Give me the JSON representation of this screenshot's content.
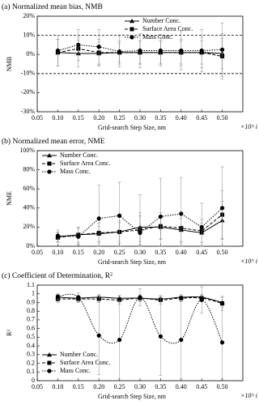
{
  "chart_data": [
    {
      "type": "line",
      "title": "(a) Normalized mean bias, NMB",
      "y_label": "NMB",
      "x_label": "Grid-search Step Size, nm",
      "x_note": "×10^ i",
      "x": [
        0.1,
        0.15,
        0.2,
        0.25,
        0.3,
        0.35,
        0.4,
        0.45,
        0.5
      ],
      "xlim": [
        0.05,
        0.55
      ],
      "xticks": [
        0.05,
        {
          "value": 0.1,
          "label": "0.10"
        },
        0.15,
        {
          "value": 0.2,
          "label": "0.20"
        },
        0.25,
        {
          "value": 0.3,
          "label": "0.30"
        },
        0.35,
        {
          "value": 0.4,
          "label": "0.40"
        },
        0.45,
        {
          "value": 0.5,
          "label": "0.50"
        }
      ],
      "ylim": [
        -30,
        20
      ],
      "yticks": [
        {
          "value": -30,
          "label": "-30%"
        },
        {
          "value": -20,
          "label": "-20%"
        },
        {
          "value": -10,
          "label": "-10%"
        },
        {
          "value": 0,
          "label": "0%"
        },
        {
          "value": 10,
          "label": "10%"
        },
        {
          "value": 20,
          "label": "20%"
        }
      ],
      "reference_lines": [
        10,
        -10
      ],
      "legend": "top-right",
      "series": [
        {
          "name": "Number Conc.",
          "color": "#000000",
          "marker": "triangle",
          "line_style": "solid",
          "values": [
            1,
            0.5,
            0.5,
            1,
            1,
            1,
            1,
            1,
            0.5
          ],
          "errors": [
            7,
            7,
            6,
            6,
            6,
            6,
            6,
            6,
            8
          ]
        },
        {
          "name": "Surface Area Conc.",
          "color": "#000000",
          "marker": "square",
          "line_style": "dashed",
          "values": [
            1,
            3,
            1,
            1,
            1,
            1,
            1,
            1,
            -1
          ],
          "errors": [
            7,
            6,
            7,
            5,
            6,
            6,
            7,
            8,
            12
          ]
        },
        {
          "name": "Mass Conc.",
          "color": "#000000",
          "marker": "circle",
          "line_style": "dotted",
          "values": [
            2,
            5,
            4,
            1.5,
            2,
            2,
            2,
            2,
            2.5
          ],
          "errors": [
            8,
            8,
            9,
            8,
            9,
            8,
            10,
            11,
            14
          ]
        }
      ]
    },
    {
      "type": "line",
      "title": "(b) Normalized mean error, NME",
      "y_label": "NME",
      "x_label": "Grid-search Step Size, nm",
      "x_note": "×10^ i",
      "x": [
        0.1,
        0.15,
        0.2,
        0.25,
        0.3,
        0.35,
        0.4,
        0.45,
        0.5
      ],
      "xlim": [
        0.05,
        0.55
      ],
      "xticks": [
        0.05,
        {
          "value": 0.1,
          "label": "0.10"
        },
        0.15,
        {
          "value": 0.2,
          "label": "0.20"
        },
        0.25,
        {
          "value": 0.3,
          "label": "0.30"
        },
        0.35,
        {
          "value": 0.4,
          "label": "0.40"
        },
        0.45,
        {
          "value": 0.5,
          "label": "0.50"
        }
      ],
      "ylim": [
        0,
        100
      ],
      "yticks": [
        {
          "value": 0,
          "label": "0%"
        },
        {
          "value": 20,
          "label": "20%"
        },
        {
          "value": 40,
          "label": "40%"
        },
        {
          "value": 60,
          "label": "60%"
        },
        {
          "value": 80,
          "label": "80%"
        },
        {
          "value": 100,
          "label": "100%"
        }
      ],
      "legend": "top-left",
      "series": [
        {
          "name": "Number Conc.",
          "color": "#000000",
          "marker": "triangle",
          "line_style": "solid",
          "values": [
            10,
            12,
            13,
            15,
            20,
            20,
            17,
            14,
            27
          ],
          "errors": [
            5,
            8,
            8,
            10,
            15,
            12,
            12,
            10,
            20
          ]
        },
        {
          "name": "Surface Area Conc.",
          "color": "#000000",
          "marker": "square",
          "line_style": "dashed",
          "values": [
            9,
            12,
            14,
            15,
            17,
            21,
            19,
            16,
            33
          ],
          "errors": [
            5,
            8,
            10,
            12,
            15,
            14,
            15,
            12,
            25
          ]
        },
        {
          "name": "Mass Conc.",
          "color": "#000000",
          "marker": "circle",
          "line_style": "dotted",
          "values": [
            11,
            10,
            29,
            32,
            14,
            31,
            34,
            20,
            40
          ],
          "errors": [
            6,
            8,
            35,
            35,
            40,
            40,
            38,
            25,
            43
          ]
        }
      ]
    },
    {
      "type": "line",
      "title": "(c) Coefficient of Determination, R²",
      "y_label": "R²",
      "x_label": "Grid-search Step Size, nm",
      "x_note": "×10^ i",
      "x": [
        0.1,
        0.15,
        0.2,
        0.25,
        0.3,
        0.35,
        0.4,
        0.45,
        0.5
      ],
      "xlim": [
        0.05,
        0.55
      ],
      "xticks": [
        0.05,
        {
          "value": 0.1,
          "label": "0.10"
        },
        0.15,
        {
          "value": 0.2,
          "label": "0.20"
        },
        0.25,
        {
          "value": 0.3,
          "label": "0.30"
        },
        0.35,
        {
          "value": 0.4,
          "label": "0.40"
        },
        0.45,
        {
          "value": 0.5,
          "label": "0.50"
        }
      ],
      "ylim": [
        0,
        1.1
      ],
      "yticks": [
        0,
        0.1,
        0.2,
        0.3,
        0.4,
        0.5,
        0.6,
        0.7,
        0.8,
        0.9,
        1,
        1.1
      ],
      "legend": "bottom-left",
      "smooth": true,
      "series": [
        {
          "name": "Number Conc.",
          "color": "#000000",
          "marker": "triangle",
          "line_style": "solid",
          "values": [
            0.96,
            0.95,
            0.96,
            0.95,
            0.95,
            0.94,
            0.96,
            0.96,
            0.9
          ],
          "errors": [
            0.03,
            0.03,
            0.03,
            0.03,
            0.03,
            0.03,
            0.03,
            0.03,
            0.06
          ]
        },
        {
          "name": "Surface Area Conc.",
          "color": "#000000",
          "marker": "square",
          "line_style": "dashed",
          "values": [
            0.94,
            0.94,
            0.94,
            0.93,
            0.95,
            0.93,
            0.95,
            0.95,
            0.89
          ],
          "errors": [
            0.04,
            0.04,
            0.04,
            0.05,
            0.04,
            0.05,
            0.04,
            0.04,
            0.08
          ]
        },
        {
          "name": "Mass Conc.",
          "color": "#000000",
          "marker": "circle",
          "line_style": "dotted",
          "values": [
            0.97,
            0.96,
            0.52,
            0.47,
            0.96,
            0.51,
            0.47,
            0.93,
            0.44
          ],
          "errors": [
            0.03,
            0.05,
            0.45,
            0.45,
            0.1,
            0.45,
            0.45,
            0.15,
            0.42
          ]
        }
      ]
    }
  ]
}
